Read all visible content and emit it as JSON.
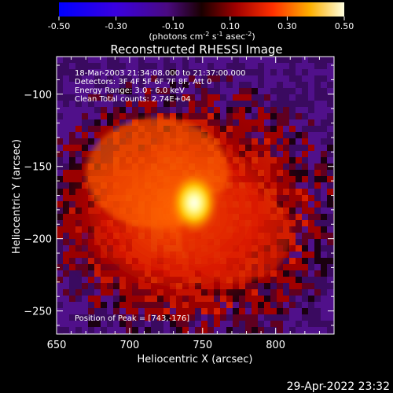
{
  "chart_data": {
    "type": "heatmap",
    "title": "Reconstructed RHESSI Image",
    "xlabel": "Heliocentric X (arcsec)",
    "ylabel": "Heliocentric Y (arcsec)",
    "xlim": [
      650,
      840
    ],
    "ylim": [
      -266,
      -74
    ],
    "xticks": [
      650,
      700,
      750,
      800
    ],
    "yticks": [
      -250,
      -200,
      -150,
      -100
    ],
    "colorbar": {
      "min": -0.5,
      "max": 0.5,
      "ticks": [
        "-0.50",
        "-0.30",
        "-0.10",
        "0.10",
        "0.30",
        "0.50"
      ],
      "units_text": "(photons cm",
      "units_exp1": "-2",
      "units_mid1": " s",
      "units_exp2": "-1",
      "units_mid2": " asec",
      "units_exp3": "-2",
      "units_end": ")"
    },
    "peak": {
      "x": 743,
      "y": -176,
      "value": 0.5
    },
    "annotations": [
      "18-Mar-2003 21:34:08.000 to 21:37:00.000",
      "Detectors: 3F 4F 5F 6F 7F 8F, Att 0",
      "Energy Range: 3.0 - 6.0 keV",
      "Clean     Total counts: 2.74E+04"
    ],
    "peak_label": "Position of Peak = [743,-176]",
    "footer_date": "29-Apr-2022 23:32"
  },
  "colors": {
    "background": "#000000",
    "colormap": [
      "#0000ff",
      "#5a00c8",
      "#6a1290",
      "#000000",
      "#800000",
      "#e00000",
      "#ff7000",
      "#ffd000",
      "#ffffff"
    ]
  }
}
